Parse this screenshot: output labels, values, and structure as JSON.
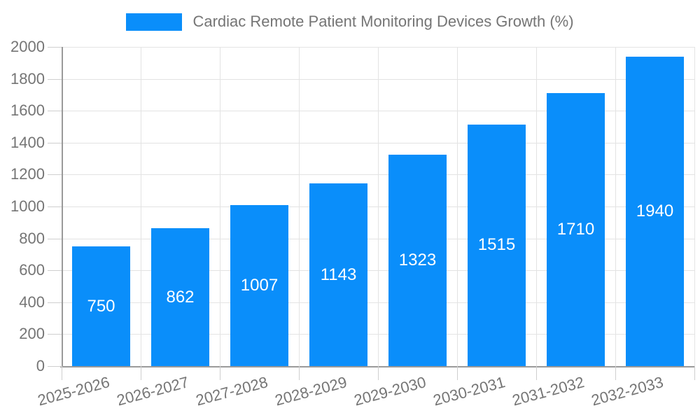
{
  "legend": {
    "label": "Cardiac Remote Patient Monitoring Devices Growth (%)"
  },
  "chart_data": {
    "type": "bar",
    "title": "Cardiac Remote Patient Monitoring Devices Growth (%)",
    "categories": [
      "2025-2026",
      "2026-2027",
      "2027-2028",
      "2028-2029",
      "2029-2030",
      "2030-2031",
      "2031-2032",
      "2032-2033"
    ],
    "values": [
      750,
      862,
      1007,
      1143,
      1323,
      1515,
      1710,
      1940
    ],
    "xlabel": "",
    "ylabel": "",
    "ylim": [
      0,
      2000
    ],
    "y_ticks": [
      0,
      200,
      400,
      600,
      800,
      1000,
      1200,
      1400,
      1600,
      1800,
      2000
    ],
    "grid": true,
    "legend_position": "top",
    "colors": {
      "bar": "#0a8efa",
      "value_label": "#ffffff",
      "axis_text": "#757575",
      "grid_line": "#e3e3e3",
      "axis_line": "#9a9a9a",
      "tick_mark": "#cfcfcf",
      "background": "#ffffff"
    }
  }
}
